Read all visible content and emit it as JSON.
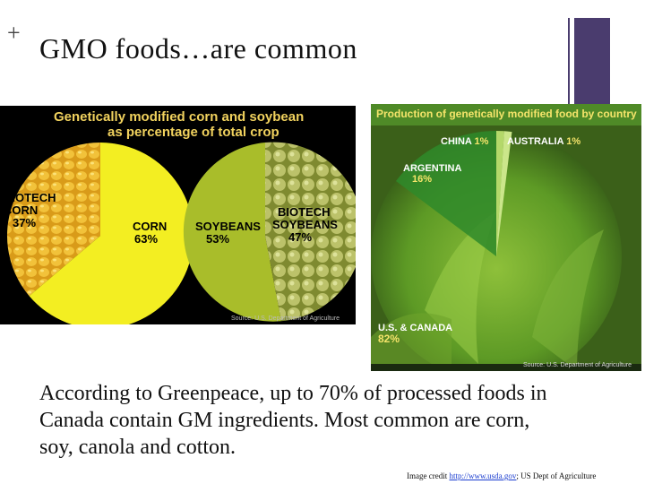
{
  "slide": {
    "plus_mark": "+",
    "title": "GMO foods…are common"
  },
  "left_chart": {
    "title_line1": "Genetically modified corn and soybean",
    "title_line2": "as percentage of total crop",
    "corn_biotech_label_1": "BIOTECH",
    "corn_biotech_label_2": "CORN",
    "corn_biotech_pct": "37%",
    "corn_label": "CORN",
    "corn_pct": "63%",
    "soy_label": "SOYBEANS",
    "soy_pct": "53%",
    "soy_biotech_label_1": "BIOTECH",
    "soy_biotech_label_2": "SOYBEANS",
    "soy_biotech_pct": "47%",
    "source": "Source: U.S. Department of Agriculture",
    "colors": {
      "corn": "#f3ee22",
      "corn_biotech": "#d99b19",
      "soy": "#aabe2a",
      "soy_biotech": "#8a9a3a"
    }
  },
  "right_chart": {
    "title": "Production of genetically modified food by country",
    "china_label": "CHINA",
    "china_pct": "1%",
    "australia_label": "AUSTRALIA",
    "australia_pct": "1%",
    "argentina_label": "ARGENTINA",
    "argentina_pct": "16%",
    "us_label": "U.S. & CANADA",
    "us_pct": "82%",
    "source": "Source: U.S. Department of Agriculture"
  },
  "chart_data": [
    {
      "type": "pie",
      "title": "Genetically modified corn and soybean as percentage of total crop",
      "categories": [
        "BIOTECH CORN",
        "CORN"
      ],
      "values": [
        37,
        63
      ]
    },
    {
      "type": "pie",
      "title": "Genetically modified corn and soybean as percentage of total crop",
      "categories": [
        "SOYBEANS",
        "BIOTECH SOYBEANS"
      ],
      "values": [
        53,
        47
      ]
    },
    {
      "type": "pie",
      "title": "Production of genetically modified food by country",
      "categories": [
        "CHINA",
        "AUSTRALIA",
        "ARGENTINA",
        "U.S. & CANADA"
      ],
      "values": [
        1,
        1,
        16,
        82
      ]
    }
  ],
  "body": {
    "text": "According to Greenpeace, up to 70% of processed foods in Canada contain GM ingredients.  Most common are corn, soy, canola and cotton."
  },
  "credit": {
    "prefix": "Image credit ",
    "link": "http://www.usda.gov",
    "suffix": "; US Dept of Agriculture"
  }
}
